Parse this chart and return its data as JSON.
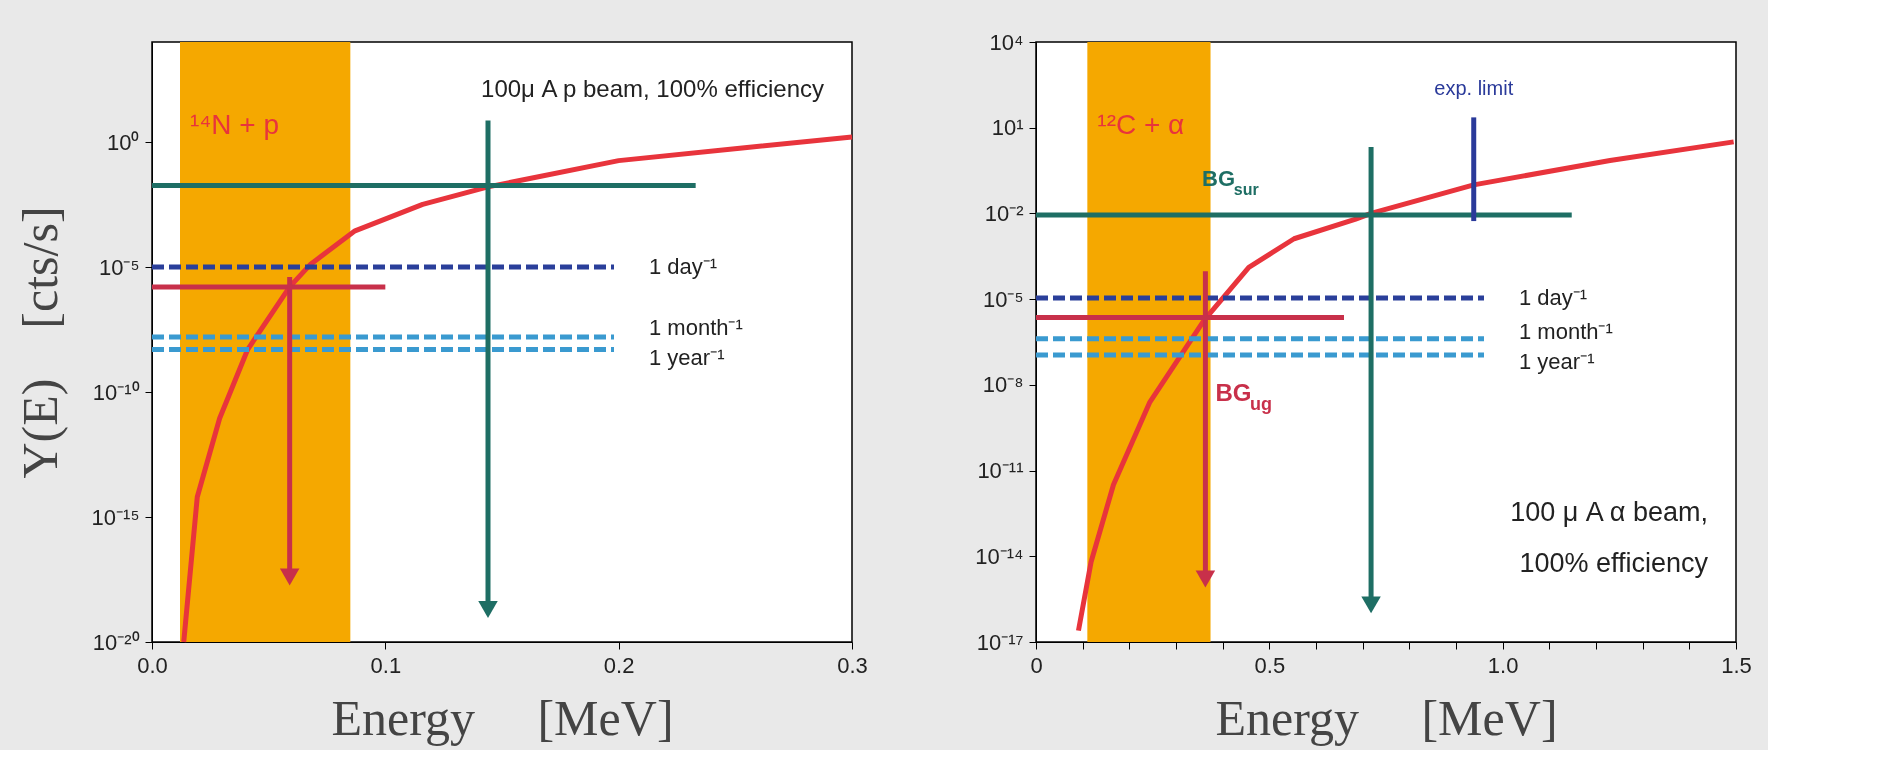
{
  "chart_data": [
    {
      "type": "line",
      "xlabel": "Energy     [MeV]",
      "ylabel": "Y(E)    [cts/s]",
      "log": "y",
      "grid": false,
      "xlim": [
        0,
        0.3
      ],
      "xticks": [
        {
          "value": 0,
          "label": "0.0"
        },
        0.1,
        0.2,
        0.3
      ],
      "ylim": [
        1e-20,
        10000.0
      ],
      "yticks": [
        {
          "value": 1,
          "label": "10⁰"
        },
        {
          "value": 1e-05,
          "label": "10⁻⁵"
        },
        {
          "value": 1e-10,
          "label": "10⁻¹⁰"
        },
        {
          "value": 1e-15,
          "label": "10⁻¹⁵"
        },
        {
          "value": 1e-20,
          "label": "10⁻²⁰"
        }
      ],
      "bands": [
        {
          "axis": "x",
          "from": 0.012,
          "to": 0.085,
          "color": "#f5a800"
        }
      ],
      "series": [
        {
          "name": "¹⁴N + p",
          "color": "#e8343c",
          "x": [
            0.0136,
            0.0194,
            0.029,
            0.041,
            0.059,
            0.068,
            0.087,
            0.116,
            0.144,
            0.2,
            0.254,
            0.3
          ],
          "values": [
            1e-20,
            6.3e-15,
            8.9e-12,
            5e-09,
            1.6e-06,
            1.3e-05,
            0.00028,
            0.0032,
            0.016,
            0.18,
            0.59,
            1.6
          ]
        },
        {
          "color": "#1e6e64",
          "x": [
            0,
            0.233
          ],
          "values": [
            0.018,
            0.018
          ]
        },
        {
          "name": "1 day⁻¹",
          "color": "#2a3f9a",
          "line_style": "dashed",
          "x": [
            0,
            0.198
          ],
          "values": [
            1e-05,
            1e-05
          ]
        },
        {
          "color": "#c8304a",
          "x": [
            0,
            0.1
          ],
          "values": [
            1.6e-06,
            1.6e-06
          ]
        },
        {
          "name": "1 month⁻¹",
          "color": "#3a9ad0",
          "line_style": "dashed",
          "x": [
            0,
            0.198
          ],
          "values": [
            1.6e-08,
            1.6e-08
          ]
        },
        {
          "name": "1 year⁻¹",
          "color": "#3a9ad0",
          "line_style": "dashed",
          "x": [
            0,
            0.198
          ],
          "values": [
            5e-09,
            5e-09
          ]
        },
        {
          "color": "#1e6e64",
          "marker": "triangle",
          "x": [
            0.144,
            0.144
          ],
          "values": [
            7.2,
            2e-19
          ]
        },
        {
          "color": "#c8304a",
          "marker": "triangle",
          "x": [
            0.059,
            0.059
          ],
          "values": [
            4e-06,
            4e-18
          ]
        }
      ],
      "annotations": [
        "100μ A  p beam, 100% efficiency"
      ]
    },
    {
      "type": "line",
      "xlabel": "Energy     [MeV]",
      "log": "y",
      "grid": false,
      "xlim": [
        0,
        1.5
      ],
      "xticks": [
        0,
        {
          "value": 0.1,
          "label": null
        },
        {
          "value": 0.2,
          "label": null
        },
        {
          "value": 0.3,
          "label": null
        },
        {
          "value": 0.4,
          "label": null
        },
        0.5,
        {
          "value": 0.6,
          "label": null
        },
        {
          "value": 0.7,
          "label": null
        },
        {
          "value": 0.8,
          "label": null
        },
        {
          "value": 0.9,
          "label": null
        },
        {
          "value": 1,
          "label": "1.0"
        },
        {
          "value": 1.1,
          "label": null
        },
        {
          "value": 1.2,
          "label": null
        },
        {
          "value": 1.3,
          "label": null
        },
        {
          "value": 1.4,
          "label": null
        },
        1.5
      ],
      "ylim": [
        1e-17,
        10000.0
      ],
      "yticks": [
        {
          "value": 10000.0,
          "label": "10⁴"
        },
        {
          "value": 10,
          "label": "10¹"
        },
        {
          "value": 0.01,
          "label": "10⁻²"
        },
        {
          "value": 1e-05,
          "label": "10⁻⁵"
        },
        {
          "value": 1e-08,
          "label": "10⁻⁸"
        },
        {
          "value": 1e-11,
          "label": "10⁻¹¹"
        },
        {
          "value": 1e-14,
          "label": "10⁻¹⁴"
        },
        {
          "value": 1e-17,
          "label": "10⁻¹⁷"
        }
      ],
      "bands": [
        {
          "axis": "x",
          "from": 0.11,
          "to": 0.374,
          "color": "#f5a800"
        }
      ],
      "series": [
        {
          "name": "¹²C + α",
          "color": "#e8343c",
          "x": [
            0.091,
            0.118,
            0.166,
            0.244,
            0.36,
            0.456,
            0.553,
            0.685,
            0.718,
            0.938,
            1.23,
            1.495
          ],
          "values": [
            2.5e-17,
            6.3e-15,
            3.2e-12,
            2.5e-09,
            1.8e-06,
            0.00013,
            0.0013,
            0.0063,
            0.01,
            0.1,
            0.71,
            3.2
          ]
        },
        {
          "name": "BG$_{sur}$",
          "color": "#1e6e64",
          "x": [
            0,
            1.148
          ],
          "values": [
            0.0089,
            0.0089
          ]
        },
        {
          "name": "1 day⁻¹",
          "color": "#2a3f9a",
          "line_style": "dashed",
          "x": [
            0,
            0.96
          ],
          "values": [
            1.1e-05,
            1.1e-05
          ]
        },
        {
          "color": "#c8304a",
          "x": [
            0,
            0.66
          ],
          "values": [
            2.3e-06,
            2.3e-06
          ]
        },
        {
          "name": "1 month⁻¹",
          "color": "#3a9ad0",
          "line_style": "dashed",
          "x": [
            0,
            0.96
          ],
          "values": [
            4.1e-07,
            4.1e-07
          ]
        },
        {
          "name": "1 year⁻¹",
          "color": "#3a9ad0",
          "line_style": "dashed",
          "x": [
            0,
            0.96
          ],
          "values": [
            1.1e-07,
            1.1e-07
          ]
        },
        {
          "name": "exp. limit",
          "color": "#2a3a9a",
          "x": [
            0.938,
            0.938
          ],
          "values": [
            23,
            0.0054
          ]
        },
        {
          "color": "#1e6e64",
          "marker": "triangle",
          "x": [
            0.718,
            0.718
          ],
          "values": [
            2.1,
            2e-16
          ]
        },
        {
          "name": "BG$_{ug}$",
          "color": "#c8304a",
          "marker": "triangle",
          "x": [
            0.363,
            0.363
          ],
          "values": [
            9.5e-05,
            1.6e-15
          ]
        }
      ],
      "annotations": [
        "100 μ A  α beam,",
        "100% efficiency"
      ]
    }
  ]
}
